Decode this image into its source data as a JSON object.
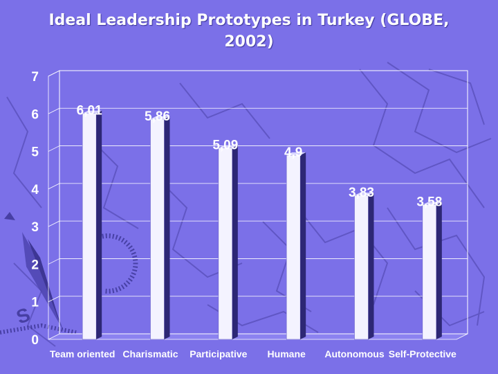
{
  "slide": {
    "title": "Ideal Leadership Prototypes in Turkey (GLOBE, 2002)"
  },
  "colors": {
    "background": "#7b70e8",
    "bar_front": "#f4f3ff",
    "bar_side": "#2d2775",
    "text": "#ffffff",
    "gridline": "#ffffff"
  },
  "chart_data": {
    "type": "bar",
    "title": "Ideal Leadership Prototypes in Turkey (GLOBE, 2002)",
    "categories": [
      "Team oriented",
      "Charismatic",
      "Participative",
      "Humane",
      "Autonomous",
      "Self-Protective"
    ],
    "values": [
      6.01,
      5.86,
      5.09,
      4.9,
      3.83,
      3.58
    ],
    "data_labels": [
      "6,01",
      "5,86",
      "5,09",
      "4,9",
      "3,83",
      "3,58"
    ],
    "y_ticks": [
      "0",
      "1",
      "2",
      "3",
      "4",
      "5",
      "6",
      "7"
    ],
    "ylim": [
      0,
      7
    ],
    "grid": true,
    "legend": "none",
    "bar_style": "3d"
  }
}
